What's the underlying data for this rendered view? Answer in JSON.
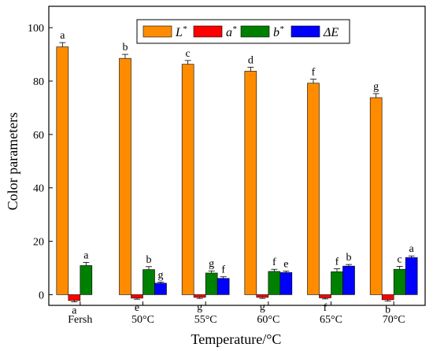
{
  "chart_data": {
    "type": "bar",
    "title": "",
    "xlabel": "Temperature/°C",
    "ylabel": "Color parameters",
    "ylim": [
      -4,
      108
    ],
    "yticks": [
      0,
      20,
      40,
      60,
      80,
      100
    ],
    "categories": [
      "Fersh",
      "50°C",
      "55°C",
      "60°C",
      "65°C",
      "70°C"
    ],
    "legend_position": "top-center",
    "grid": false,
    "series": [
      {
        "name": "L*",
        "legend_base": "L",
        "legend_sup": "*",
        "color": "#FF8C00",
        "values": [
          92.8,
          88.5,
          86.3,
          83.7,
          79.2,
          73.8
        ],
        "errors": [
          1.6,
          1.5,
          1.4,
          1.5,
          1.5,
          1.5
        ],
        "letters": [
          "a",
          "b",
          "c",
          "d",
          "f",
          "g"
        ]
      },
      {
        "name": "a*",
        "legend_base": "a",
        "legend_sup": "*",
        "color": "#FF0000",
        "values": [
          -2.2,
          -1.3,
          -1.0,
          -1.0,
          -1.2,
          -1.9
        ],
        "errors": [
          0.5,
          0.4,
          0.4,
          0.4,
          0.4,
          0.5
        ],
        "letters": [
          "a",
          "e",
          "g",
          "g",
          "f",
          "b"
        ]
      },
      {
        "name": "b*",
        "legend_base": "b",
        "legend_sup": "*",
        "color": "#008000",
        "values": [
          10.9,
          9.4,
          8.1,
          8.7,
          8.6,
          9.5
        ],
        "errors": [
          1.2,
          1.1,
          0.8,
          0.8,
          1.1,
          1.1
        ],
        "letters": [
          "a",
          "b",
          "g",
          "f",
          "f",
          "c"
        ]
      },
      {
        "name": "ΔE",
        "legend_base": "ΔE",
        "legend_sup": "",
        "color": "#0000FF",
        "values": [
          null,
          4.3,
          6.1,
          8.3,
          10.7,
          13.9
        ],
        "errors": [
          null,
          0.4,
          0.6,
          0.5,
          0.6,
          0.6
        ],
        "letters": [
          null,
          "g",
          "f",
          "e",
          "b",
          "a"
        ]
      }
    ]
  }
}
